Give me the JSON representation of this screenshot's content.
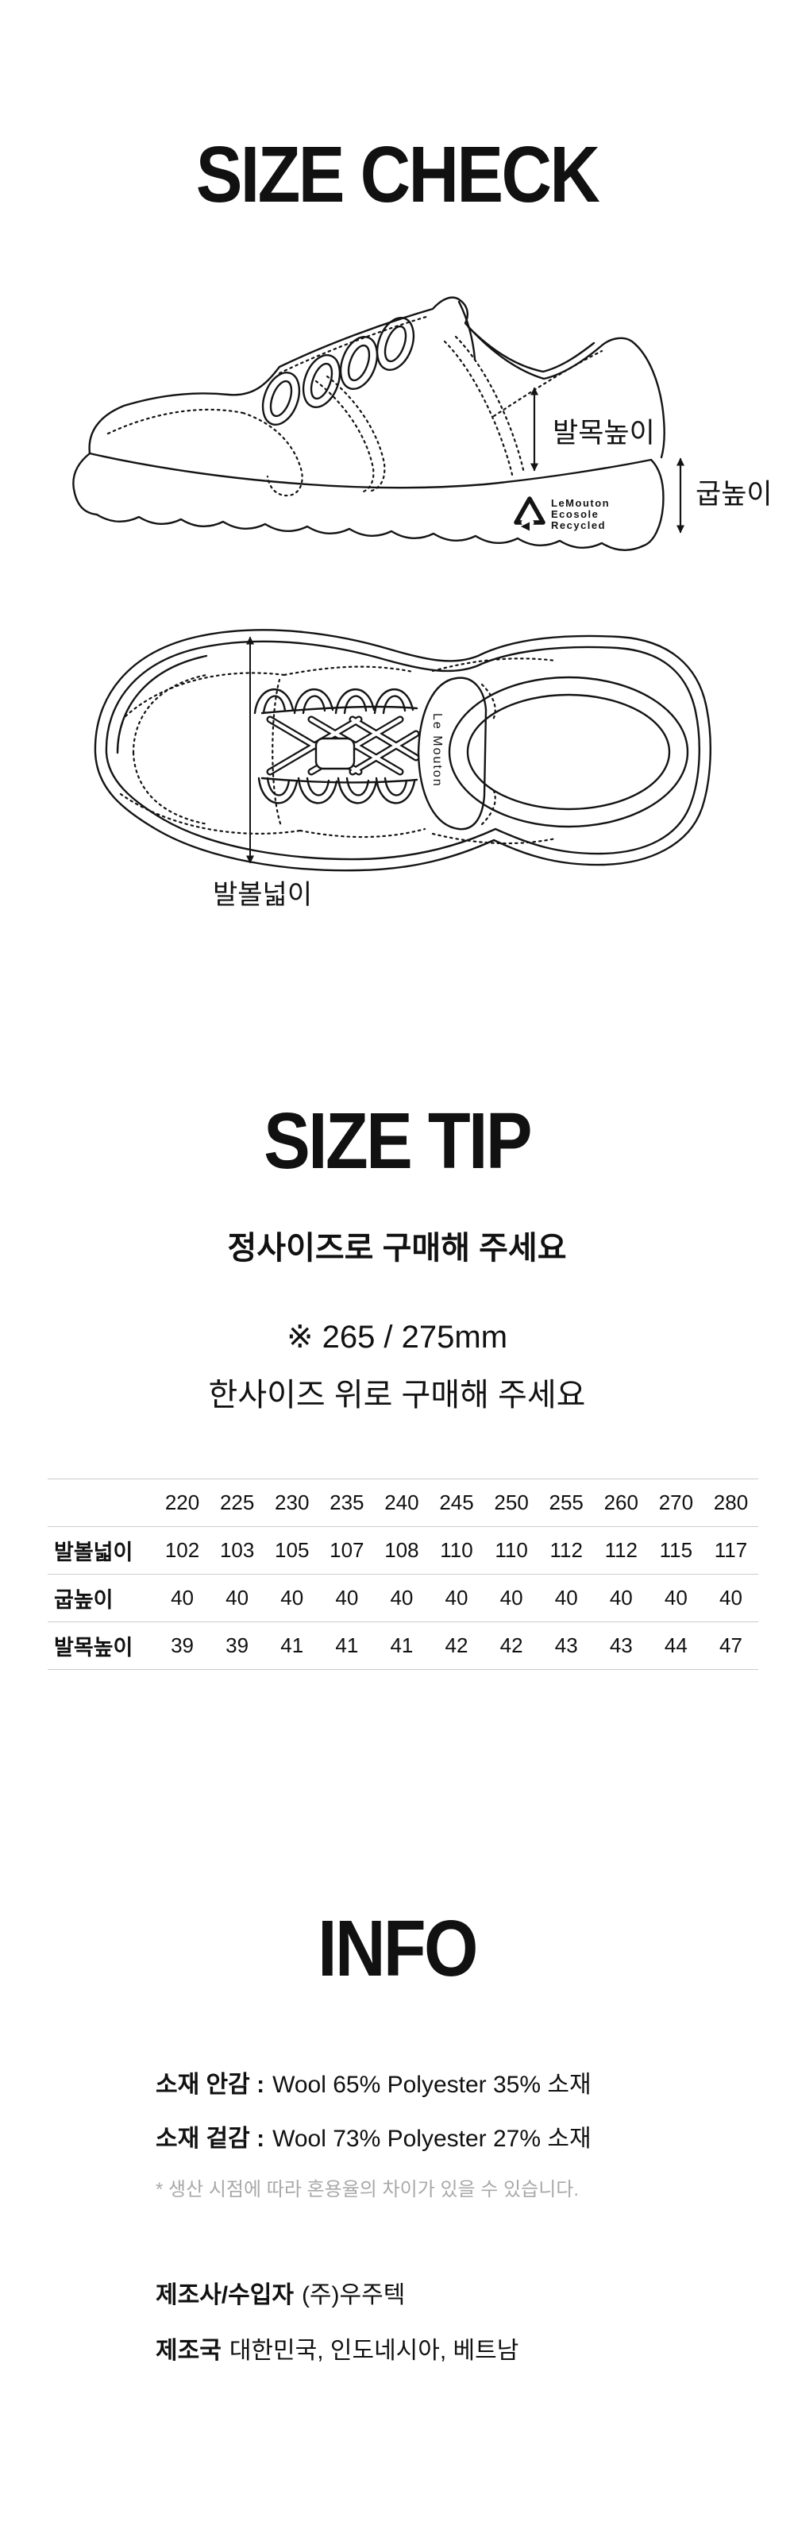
{
  "size_check": {
    "title": "SIZE CHECK",
    "side_view": {
      "ankle_height_label": "발목높이",
      "heel_height_label": "굽높이",
      "logo_lines": [
        "LeMouton",
        "Ecosole",
        "Recycled"
      ]
    },
    "top_view": {
      "width_label": "발볼넓이",
      "tongue_logo": "Le Mouton"
    }
  },
  "size_tip": {
    "title": "SIZE TIP",
    "subtitle": "정사이즈로 구매해 주세요",
    "note_line1": "※ 265 / 275mm",
    "note_line2": "한사이즈 위로 구매해 주세요"
  },
  "size_table": {
    "columns": [
      "220",
      "225",
      "230",
      "235",
      "240",
      "245",
      "250",
      "255",
      "260",
      "270",
      "280"
    ],
    "rows": [
      {
        "label": "발볼넓이",
        "values": [
          "102",
          "103",
          "105",
          "107",
          "108",
          "110",
          "110",
          "112",
          "112",
          "115",
          "117"
        ]
      },
      {
        "label": "굽높이",
        "values": [
          "40",
          "40",
          "40",
          "40",
          "40",
          "40",
          "40",
          "40",
          "40",
          "40",
          "40"
        ]
      },
      {
        "label": "발목높이",
        "values": [
          "39",
          "39",
          "41",
          "41",
          "41",
          "42",
          "42",
          "43",
          "43",
          "44",
          "47"
        ]
      }
    ]
  },
  "info": {
    "title": "INFO",
    "materials": [
      {
        "label": "소재 안감 :",
        "value": "Wool 65% Polyester 35% 소재"
      },
      {
        "label": "소재 겉감 :",
        "value": "Wool 73% Polyester 27% 소재"
      }
    ],
    "disclaimer": "* 생산 시점에 따라 혼용율의 차이가 있을 수 있습니다.",
    "manufacturer": {
      "label": "제조사/수입자",
      "value": "(주)우주텍"
    },
    "country": {
      "label": "제조국",
      "value": "대한민국, 인도네시아, 베트남"
    }
  }
}
